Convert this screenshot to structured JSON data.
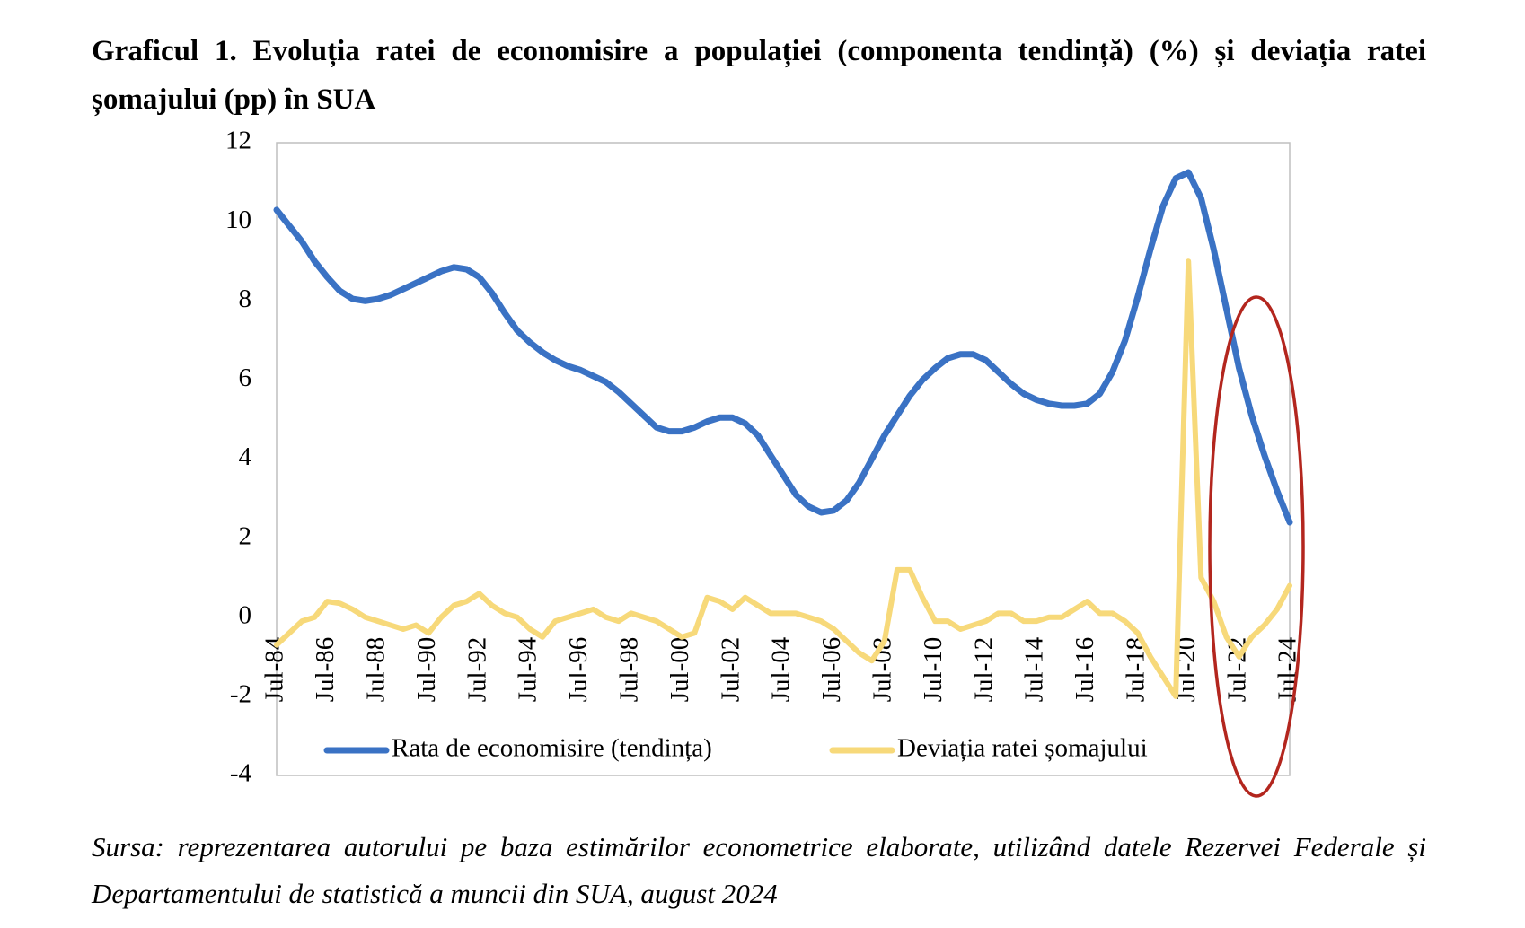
{
  "chart_data": {
    "type": "line",
    "title": "Graficul 1. Evoluția ratei de economisire a populației (componenta tendință) (%) și deviația ratei șomajului (pp) în SUA",
    "source": "Sursa: reprezentarea autorului pe baza estimărilor econometrice elaborate, utilizând datele Rezervei Federale și Departamentului de statistică a muncii din SUA, august 2024",
    "categories": [
      "Jul-84",
      null,
      null,
      null,
      "Jul-86",
      null,
      null,
      null,
      "Jul-88",
      null,
      null,
      null,
      "Jul-90",
      null,
      null,
      null,
      "Jul-92",
      null,
      null,
      null,
      "Jul-94",
      null,
      null,
      null,
      "Jul-96",
      null,
      null,
      null,
      "Jul-98",
      null,
      null,
      null,
      "Jul-00",
      null,
      null,
      null,
      "Jul-02",
      null,
      null,
      null,
      "Jul-04",
      null,
      null,
      null,
      "Jul-06",
      null,
      null,
      null,
      "Jul-08",
      null,
      null,
      null,
      "Jul-10",
      null,
      null,
      null,
      "Jul-12",
      null,
      null,
      null,
      "Jul-14",
      null,
      null,
      null,
      "Jul-16",
      null,
      null,
      null,
      "Jul-18",
      null,
      null,
      null,
      "Jul-20",
      null,
      null,
      null,
      "Jul-22",
      null,
      null,
      null,
      "Jul-24"
    ],
    "series": [
      {
        "name": "Rata de economisire (tendința)",
        "color": "#3a72c4",
        "values": [
          10.3,
          9.9,
          9.5,
          9.0,
          8.6,
          8.25,
          8.05,
          8.0,
          8.05,
          8.15,
          8.3,
          8.45,
          8.6,
          8.75,
          8.85,
          8.8,
          8.6,
          8.2,
          7.7,
          7.25,
          6.95,
          6.7,
          6.5,
          6.35,
          6.25,
          6.1,
          5.95,
          5.7,
          5.4,
          5.1,
          4.8,
          4.7,
          4.7,
          4.8,
          4.95,
          5.05,
          5.05,
          4.9,
          4.6,
          4.1,
          3.6,
          3.1,
          2.8,
          2.65,
          2.7,
          2.95,
          3.4,
          4.0,
          4.6,
          5.1,
          5.6,
          6.0,
          6.3,
          6.55,
          6.65,
          6.65,
          6.5,
          6.2,
          5.9,
          5.65,
          5.5,
          5.4,
          5.35,
          5.35,
          5.4,
          5.65,
          6.2,
          7.0,
          8.1,
          9.3,
          10.4,
          11.1,
          11.25,
          10.6,
          9.3,
          7.8,
          6.3,
          5.1,
          4.1,
          3.2,
          2.4
        ]
      },
      {
        "name": "Deviația ratei șomajului",
        "color": "#f7d97a",
        "values": [
          -0.7,
          -0.4,
          -0.1,
          0.0,
          0.4,
          0.35,
          0.2,
          0.0,
          -0.1,
          -0.2,
          -0.3,
          -0.2,
          -0.4,
          0.0,
          0.3,
          0.4,
          0.6,
          0.3,
          0.1,
          0.0,
          -0.3,
          -0.5,
          -0.1,
          0.0,
          0.1,
          0.2,
          0.0,
          -0.1,
          0.1,
          0.0,
          -0.1,
          -0.3,
          -0.5,
          -0.4,
          0.5,
          0.4,
          0.2,
          0.5,
          0.3,
          0.1,
          0.1,
          0.1,
          0.0,
          -0.1,
          -0.3,
          -0.6,
          -0.9,
          -1.1,
          -0.6,
          1.2,
          1.2,
          0.5,
          -0.1,
          -0.1,
          -0.3,
          -0.2,
          -0.1,
          0.1,
          0.1,
          -0.1,
          -0.1,
          0.0,
          0.0,
          0.2,
          0.4,
          0.1,
          0.1,
          -0.1,
          -0.4,
          -1.0,
          -1.5,
          -2.0,
          9.0,
          1.0,
          0.4,
          -0.5,
          -1.0,
          -0.5,
          -0.2,
          0.2,
          0.8
        ]
      }
    ],
    "ylim": [
      -4,
      12
    ],
    "yticks": [
      -4,
      -2,
      0,
      2,
      4,
      6,
      8,
      10,
      12
    ],
    "grid": false,
    "legend": "bottom"
  }
}
